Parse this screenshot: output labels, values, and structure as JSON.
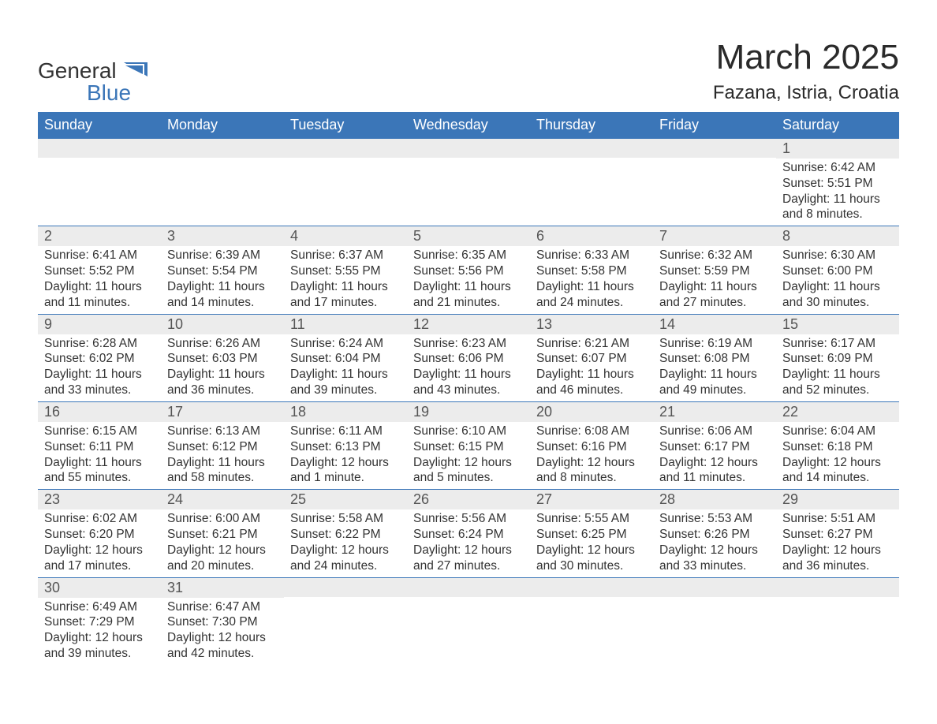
{
  "logo": {
    "text1": "General",
    "text2": "Blue"
  },
  "title": "March 2025",
  "location": "Fazana, Istria, Croatia",
  "colors": {
    "header_bg": "#3b76b8",
    "header_text": "#ffffff",
    "row_border": "#3b76b8",
    "daynum_bg": "#ececec",
    "body_text": "#333333",
    "logo_accent": "#3b76b8"
  },
  "fonts": {
    "title_size_pt": 33,
    "location_size_pt": 18,
    "header_size_pt": 14,
    "daynum_size_pt": 14,
    "detail_size_pt": 12
  },
  "day_headers": [
    "Sunday",
    "Monday",
    "Tuesday",
    "Wednesday",
    "Thursday",
    "Friday",
    "Saturday"
  ],
  "weeks": [
    [
      {
        "n": "",
        "sunrise": "",
        "sunset": "",
        "daylight": ""
      },
      {
        "n": "",
        "sunrise": "",
        "sunset": "",
        "daylight": ""
      },
      {
        "n": "",
        "sunrise": "",
        "sunset": "",
        "daylight": ""
      },
      {
        "n": "",
        "sunrise": "",
        "sunset": "",
        "daylight": ""
      },
      {
        "n": "",
        "sunrise": "",
        "sunset": "",
        "daylight": ""
      },
      {
        "n": "",
        "sunrise": "",
        "sunset": "",
        "daylight": ""
      },
      {
        "n": "1",
        "sunrise": "Sunrise: 6:42 AM",
        "sunset": "Sunset: 5:51 PM",
        "daylight": "Daylight: 11 hours and 8 minutes."
      }
    ],
    [
      {
        "n": "2",
        "sunrise": "Sunrise: 6:41 AM",
        "sunset": "Sunset: 5:52 PM",
        "daylight": "Daylight: 11 hours and 11 minutes."
      },
      {
        "n": "3",
        "sunrise": "Sunrise: 6:39 AM",
        "sunset": "Sunset: 5:54 PM",
        "daylight": "Daylight: 11 hours and 14 minutes."
      },
      {
        "n": "4",
        "sunrise": "Sunrise: 6:37 AM",
        "sunset": "Sunset: 5:55 PM",
        "daylight": "Daylight: 11 hours and 17 minutes."
      },
      {
        "n": "5",
        "sunrise": "Sunrise: 6:35 AM",
        "sunset": "Sunset: 5:56 PM",
        "daylight": "Daylight: 11 hours and 21 minutes."
      },
      {
        "n": "6",
        "sunrise": "Sunrise: 6:33 AM",
        "sunset": "Sunset: 5:58 PM",
        "daylight": "Daylight: 11 hours and 24 minutes."
      },
      {
        "n": "7",
        "sunrise": "Sunrise: 6:32 AM",
        "sunset": "Sunset: 5:59 PM",
        "daylight": "Daylight: 11 hours and 27 minutes."
      },
      {
        "n": "8",
        "sunrise": "Sunrise: 6:30 AM",
        "sunset": "Sunset: 6:00 PM",
        "daylight": "Daylight: 11 hours and 30 minutes."
      }
    ],
    [
      {
        "n": "9",
        "sunrise": "Sunrise: 6:28 AM",
        "sunset": "Sunset: 6:02 PM",
        "daylight": "Daylight: 11 hours and 33 minutes."
      },
      {
        "n": "10",
        "sunrise": "Sunrise: 6:26 AM",
        "sunset": "Sunset: 6:03 PM",
        "daylight": "Daylight: 11 hours and 36 minutes."
      },
      {
        "n": "11",
        "sunrise": "Sunrise: 6:24 AM",
        "sunset": "Sunset: 6:04 PM",
        "daylight": "Daylight: 11 hours and 39 minutes."
      },
      {
        "n": "12",
        "sunrise": "Sunrise: 6:23 AM",
        "sunset": "Sunset: 6:06 PM",
        "daylight": "Daylight: 11 hours and 43 minutes."
      },
      {
        "n": "13",
        "sunrise": "Sunrise: 6:21 AM",
        "sunset": "Sunset: 6:07 PM",
        "daylight": "Daylight: 11 hours and 46 minutes."
      },
      {
        "n": "14",
        "sunrise": "Sunrise: 6:19 AM",
        "sunset": "Sunset: 6:08 PM",
        "daylight": "Daylight: 11 hours and 49 minutes."
      },
      {
        "n": "15",
        "sunrise": "Sunrise: 6:17 AM",
        "sunset": "Sunset: 6:09 PM",
        "daylight": "Daylight: 11 hours and 52 minutes."
      }
    ],
    [
      {
        "n": "16",
        "sunrise": "Sunrise: 6:15 AM",
        "sunset": "Sunset: 6:11 PM",
        "daylight": "Daylight: 11 hours and 55 minutes."
      },
      {
        "n": "17",
        "sunrise": "Sunrise: 6:13 AM",
        "sunset": "Sunset: 6:12 PM",
        "daylight": "Daylight: 11 hours and 58 minutes."
      },
      {
        "n": "18",
        "sunrise": "Sunrise: 6:11 AM",
        "sunset": "Sunset: 6:13 PM",
        "daylight": "Daylight: 12 hours and 1 minute."
      },
      {
        "n": "19",
        "sunrise": "Sunrise: 6:10 AM",
        "sunset": "Sunset: 6:15 PM",
        "daylight": "Daylight: 12 hours and 5 minutes."
      },
      {
        "n": "20",
        "sunrise": "Sunrise: 6:08 AM",
        "sunset": "Sunset: 6:16 PM",
        "daylight": "Daylight: 12 hours and 8 minutes."
      },
      {
        "n": "21",
        "sunrise": "Sunrise: 6:06 AM",
        "sunset": "Sunset: 6:17 PM",
        "daylight": "Daylight: 12 hours and 11 minutes."
      },
      {
        "n": "22",
        "sunrise": "Sunrise: 6:04 AM",
        "sunset": "Sunset: 6:18 PM",
        "daylight": "Daylight: 12 hours and 14 minutes."
      }
    ],
    [
      {
        "n": "23",
        "sunrise": "Sunrise: 6:02 AM",
        "sunset": "Sunset: 6:20 PM",
        "daylight": "Daylight: 12 hours and 17 minutes."
      },
      {
        "n": "24",
        "sunrise": "Sunrise: 6:00 AM",
        "sunset": "Sunset: 6:21 PM",
        "daylight": "Daylight: 12 hours and 20 minutes."
      },
      {
        "n": "25",
        "sunrise": "Sunrise: 5:58 AM",
        "sunset": "Sunset: 6:22 PM",
        "daylight": "Daylight: 12 hours and 24 minutes."
      },
      {
        "n": "26",
        "sunrise": "Sunrise: 5:56 AM",
        "sunset": "Sunset: 6:24 PM",
        "daylight": "Daylight: 12 hours and 27 minutes."
      },
      {
        "n": "27",
        "sunrise": "Sunrise: 5:55 AM",
        "sunset": "Sunset: 6:25 PM",
        "daylight": "Daylight: 12 hours and 30 minutes."
      },
      {
        "n": "28",
        "sunrise": "Sunrise: 5:53 AM",
        "sunset": "Sunset: 6:26 PM",
        "daylight": "Daylight: 12 hours and 33 minutes."
      },
      {
        "n": "29",
        "sunrise": "Sunrise: 5:51 AM",
        "sunset": "Sunset: 6:27 PM",
        "daylight": "Daylight: 12 hours and 36 minutes."
      }
    ],
    [
      {
        "n": "30",
        "sunrise": "Sunrise: 6:49 AM",
        "sunset": "Sunset: 7:29 PM",
        "daylight": "Daylight: 12 hours and 39 minutes."
      },
      {
        "n": "31",
        "sunrise": "Sunrise: 6:47 AM",
        "sunset": "Sunset: 7:30 PM",
        "daylight": "Daylight: 12 hours and 42 minutes."
      },
      {
        "n": "",
        "sunrise": "",
        "sunset": "",
        "daylight": ""
      },
      {
        "n": "",
        "sunrise": "",
        "sunset": "",
        "daylight": ""
      },
      {
        "n": "",
        "sunrise": "",
        "sunset": "",
        "daylight": ""
      },
      {
        "n": "",
        "sunrise": "",
        "sunset": "",
        "daylight": ""
      },
      {
        "n": "",
        "sunrise": "",
        "sunset": "",
        "daylight": ""
      }
    ]
  ]
}
